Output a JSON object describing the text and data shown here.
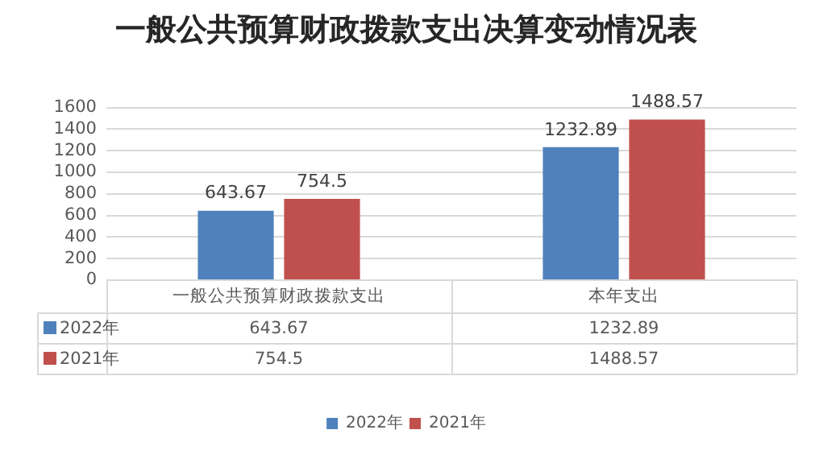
{
  "chart_data": {
    "type": "bar",
    "title": "一般公共预算财政拨款支出决算变动情况表",
    "categories": [
      "一般公共预算财政拨款支出",
      "本年支出"
    ],
    "series": [
      {
        "name": "2022年",
        "color": "#4f81bd",
        "values": [
          643.67,
          1232.89
        ],
        "value_labels": [
          "643.67",
          "1232.89"
        ]
      },
      {
        "name": "2021年",
        "color": "#c0504d",
        "values": [
          754.5,
          1488.57
        ],
        "value_labels": [
          "754.5",
          "1488.57"
        ]
      }
    ],
    "ylim": [
      0,
      1600
    ],
    "yticks": [
      0,
      200,
      400,
      600,
      800,
      1000,
      1200,
      1400,
      1600
    ],
    "annotations": [
      "643.67",
      "1232.89",
      "754.5",
      "1488.57"
    ],
    "grid": "y",
    "legend": "bottom",
    "data_labels": true
  }
}
